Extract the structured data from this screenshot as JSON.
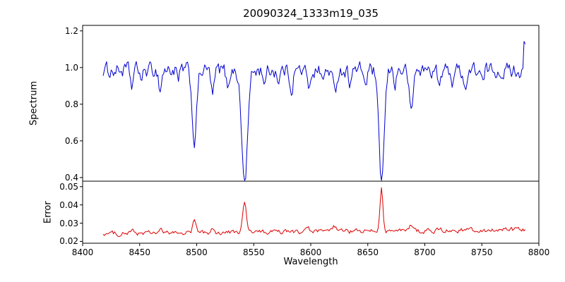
{
  "figure": {
    "background": "#ffffff"
  },
  "chart_data": {
    "type": "line",
    "title": "20090324_1333m19_035",
    "xlabel": "Wavelength",
    "xlim": [
      8400,
      8800
    ],
    "x_ticks": [
      "8400",
      "8450",
      "8500",
      "8550",
      "8600",
      "8650",
      "8700",
      "8750",
      "8800"
    ],
    "x_data_range": [
      8418,
      8788
    ],
    "grid": false,
    "legend": "none",
    "panels": [
      {
        "name": "spectrum",
        "ylabel": "Spectrum",
        "ylim": [
          0.38,
          1.23
        ],
        "y_ticks": [
          "0.4",
          "0.6",
          "0.8",
          "1.0",
          "1.2"
        ],
        "line_color": "#0000cc",
        "baseline": 0.985,
        "noise_amp": 0.07,
        "noise_corr": 0.5,
        "absorption_lines": [
          {
            "center": 8443,
            "depth": 0.09,
            "sigma": 1.2
          },
          {
            "center": 8452,
            "depth": 0.06,
            "sigma": 1.0
          },
          {
            "center": 8468,
            "depth": 0.11,
            "sigma": 1.2
          },
          {
            "center": 8484,
            "depth": 0.07,
            "sigma": 1.0
          },
          {
            "center": 8498,
            "depth": 0.385,
            "sigma": 2.0
          },
          {
            "center": 8514,
            "depth": 0.14,
            "sigma": 1.4
          },
          {
            "center": 8527,
            "depth": 0.09,
            "sigma": 1.2
          },
          {
            "center": 8542,
            "depth": 0.61,
            "sigma": 2.6
          },
          {
            "center": 8560,
            "depth": 0.07,
            "sigma": 1.2
          },
          {
            "center": 8572,
            "depth": 0.06,
            "sigma": 1.0
          },
          {
            "center": 8583,
            "depth": 0.1,
            "sigma": 1.3
          },
          {
            "center": 8598,
            "depth": 0.1,
            "sigma": 1.3
          },
          {
            "center": 8611,
            "depth": 0.07,
            "sigma": 1.0
          },
          {
            "center": 8621,
            "depth": 0.13,
            "sigma": 1.5
          },
          {
            "center": 8634,
            "depth": 0.06,
            "sigma": 1.0
          },
          {
            "center": 8648,
            "depth": 0.08,
            "sigma": 1.2
          },
          {
            "center": 8662,
            "depth": 0.61,
            "sigma": 2.4
          },
          {
            "center": 8674,
            "depth": 0.07,
            "sigma": 1.0
          },
          {
            "center": 8688,
            "depth": 0.24,
            "sigma": 1.6
          },
          {
            "center": 8713,
            "depth": 0.09,
            "sigma": 1.3
          },
          {
            "center": 8724,
            "depth": 0.06,
            "sigma": 1.0
          },
          {
            "center": 8736,
            "depth": 0.1,
            "sigma": 1.3
          },
          {
            "center": 8751,
            "depth": 0.08,
            "sigma": 1.2
          }
        ],
        "emission_spikes": [
          {
            "center": 8787.5,
            "height": 0.22,
            "sigma": 0.8
          }
        ]
      },
      {
        "name": "error",
        "ylabel": "Error",
        "ylim": [
          0.019,
          0.053
        ],
        "y_ticks": [
          "0.02",
          "0.03",
          "0.04",
          "0.05"
        ],
        "line_color": "#dd0000",
        "baseline_start": 0.0243,
        "baseline_slope_per_angstrom": 5.5e-06,
        "noise_amp": 0.0022,
        "noise_corr": 0.5,
        "peaks": [
          {
            "center": 8443,
            "height": 0.0012,
            "sigma": 1.5
          },
          {
            "center": 8468,
            "height": 0.0015,
            "sigma": 1.5
          },
          {
            "center": 8498,
            "height": 0.0068,
            "sigma": 1.4
          },
          {
            "center": 8514,
            "height": 0.0015,
            "sigma": 1.5
          },
          {
            "center": 8542,
            "height": 0.0158,
            "sigma": 1.6
          },
          {
            "center": 8598,
            "height": 0.0012,
            "sigma": 1.5
          },
          {
            "center": 8621,
            "height": 0.0028,
            "sigma": 1.5
          },
          {
            "center": 8662,
            "height": 0.0238,
            "sigma": 1.3
          },
          {
            "center": 8688,
            "height": 0.0035,
            "sigma": 1.5
          },
          {
            "center": 8736,
            "height": 0.0012,
            "sigma": 1.5
          }
        ]
      }
    ]
  }
}
